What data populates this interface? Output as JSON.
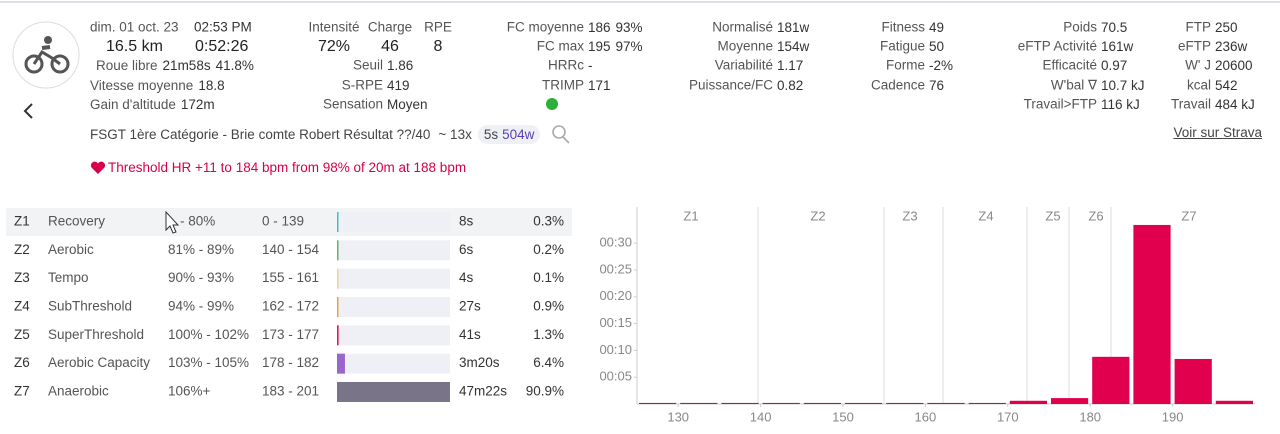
{
  "header": {
    "date": "dim. 01 oct. 23",
    "time": "02:53 PM",
    "distance": "16.5 km",
    "duration": "0:52:26",
    "left_stats": [
      {
        "label": "Roue libre",
        "value": "21m58s",
        "extra": "41.8%"
      },
      {
        "label": "Vitesse moyenne",
        "value": "18.8"
      },
      {
        "label": "Gain d'altitude",
        "value": "172m"
      }
    ],
    "load_headers": [
      "Intensité",
      "Charge",
      "RPE"
    ],
    "load_values": [
      "72%",
      "46",
      "8"
    ],
    "columns": {
      "threshold": [
        {
          "label": "Seuil",
          "value": "1.86"
        },
        {
          "label": "S-RPE",
          "value": "419"
        },
        {
          "label": "Sensation",
          "value": "Moyen"
        }
      ],
      "heart": [
        {
          "label": "FC moyenne",
          "value": "186",
          "extra": "93%"
        },
        {
          "label": "FC max",
          "value": "195",
          "extra": "97%"
        },
        {
          "label": "HRRc",
          "value": "-"
        },
        {
          "label": "TRIMP",
          "value": "171"
        }
      ],
      "power": [
        {
          "label": "Normalisé",
          "value": "181w"
        },
        {
          "label": "Moyenne",
          "value": "154w"
        },
        {
          "label": "Variabilité",
          "value": "1.17"
        },
        {
          "label": "Puissance/FC",
          "value": "0.82"
        }
      ],
      "fitness": [
        {
          "label": "Fitness",
          "value": "49"
        },
        {
          "label": "Fatigue",
          "value": "50"
        },
        {
          "label": "Forme",
          "value": "-2%"
        },
        {
          "label": "Cadence",
          "value": "76"
        }
      ],
      "weight": [
        {
          "label": "Poids",
          "value": "70.5"
        },
        {
          "label": "eFTP Activité",
          "value": "161w"
        },
        {
          "label": "Efficacité",
          "value": "0.97"
        },
        {
          "label": "W'bal ∇",
          "value": "10.7 kJ"
        },
        {
          "label": "Travail>FTP",
          "value": "116 kJ"
        }
      ],
      "ftp": [
        {
          "label": "FTP",
          "value": "250"
        },
        {
          "label": "eFTP",
          "value": "236w"
        },
        {
          "label": "W' J",
          "value": "20600"
        },
        {
          "label": "kcal",
          "value": "542"
        },
        {
          "label": "Travail",
          "value": "484 kJ"
        }
      ]
    },
    "title": "FSGT 1ère Catégorie - Brie comte Robert Résultat ??/40",
    "intervals": "~ 13x",
    "peak_label": "5s",
    "peak_value": "504w",
    "strava": "Voir sur Strava",
    "threshold": "Threshold HR +11 to 184 bpm from 98% of 20m at 188 bpm"
  },
  "zones_table": {
    "rows": [
      {
        "zone": "Z1",
        "name": "Recovery",
        "pct": "- 80%",
        "hr": "0 - 139",
        "time": "8s",
        "percent": 0.3,
        "percent_label": "0.3%",
        "color": "#3cc0c0"
      },
      {
        "zone": "Z2",
        "name": "Aerobic",
        "pct": "81% - 89%",
        "hr": "140 - 154",
        "time": "6s",
        "percent": 0.2,
        "percent_label": "0.2%",
        "color": "#5cb85c"
      },
      {
        "zone": "Z3",
        "name": "Tempo",
        "pct": "90% - 93%",
        "hr": "155 - 161",
        "time": "4s",
        "percent": 0.1,
        "percent_label": "0.1%",
        "color": "#f3d48a"
      },
      {
        "zone": "Z4",
        "name": "SubThreshold",
        "pct": "94% - 99%",
        "hr": "162 - 172",
        "time": "27s",
        "percent": 0.9,
        "percent_label": "0.9%",
        "color": "#f0a040"
      },
      {
        "zone": "Z5",
        "name": "SuperThreshold",
        "pct": "100% - 102%",
        "hr": "173 - 177",
        "time": "41s",
        "percent": 1.3,
        "percent_label": "1.3%",
        "color": "#e0195a"
      },
      {
        "zone": "Z6",
        "name": "Aerobic Capacity",
        "pct": "103% - 105%",
        "hr": "178 - 182",
        "time": "3m20s",
        "percent": 6.4,
        "percent_label": "6.4%",
        "color": "#9966cc"
      },
      {
        "zone": "Z7",
        "name": "Anaerobic",
        "pct": "106%+",
        "hr": "183 - 201",
        "time": "47m22s",
        "percent": 90.9,
        "percent_label": "90.9%",
        "color": "#7a7488"
      }
    ]
  },
  "chart_data": {
    "type": "histogram",
    "bins": [
      125,
      130,
      135,
      140,
      145,
      150,
      155,
      160,
      165,
      170,
      175,
      180,
      185,
      190,
      195,
      200
    ],
    "values": [
      0.2,
      0.2,
      0.2,
      0.2,
      0.2,
      0.2,
      0.2,
      0.2,
      0.2,
      0.6,
      1.1,
      8.8,
      33.4,
      8.4,
      0.6
    ],
    "color": "#e0004d",
    "xlim": [
      125,
      200
    ],
    "xticks": [
      130,
      140,
      150,
      160,
      170,
      180,
      190
    ],
    "ylim": [
      0,
      36.75
    ],
    "yticks": [
      {
        "value": 5,
        "label": "00:05"
      },
      {
        "value": 10,
        "label": "00:10"
      },
      {
        "value": 15,
        "label": "00:15"
      },
      {
        "value": 20,
        "label": "00:20"
      },
      {
        "value": 25,
        "label": "00:25"
      },
      {
        "value": 30,
        "label": "00:30"
      }
    ],
    "zone_labels": [
      "Z1",
      "Z2",
      "Z3",
      "Z4",
      "Z5",
      "Z6",
      "Z7"
    ]
  }
}
